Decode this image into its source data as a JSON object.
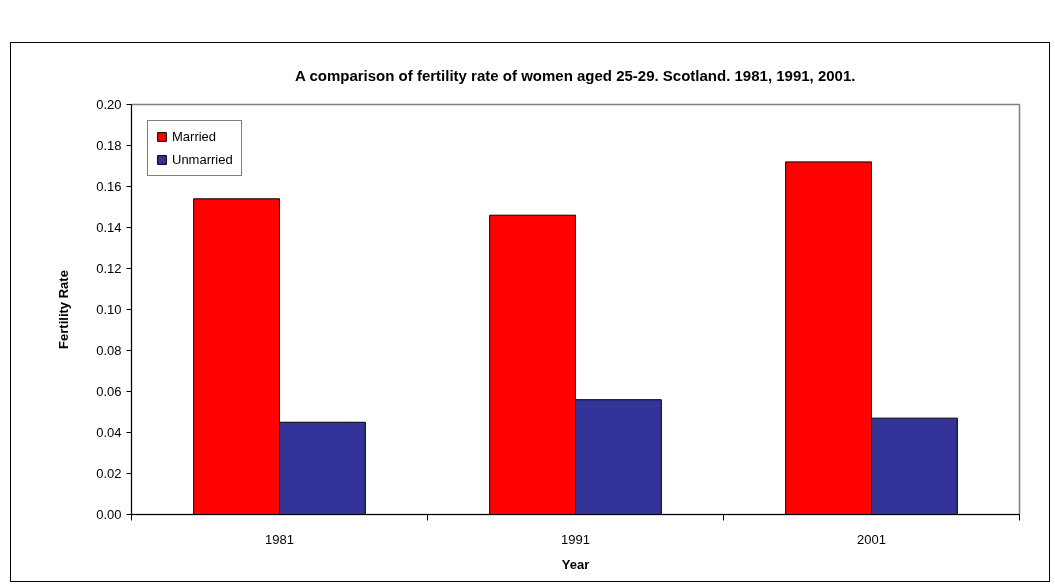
{
  "chart_data": {
    "type": "bar",
    "title": "A comparison of fertility rate of women aged 25-29. Scotland. 1981, 1991, 2001.",
    "xlabel": "Year",
    "ylabel": "Fertility Rate",
    "categories": [
      "1981",
      "1991",
      "2001"
    ],
    "series": [
      {
        "name": "Married",
        "color": "#ff0000",
        "values": [
          0.154,
          0.146,
          0.172
        ]
      },
      {
        "name": "Unmarried",
        "color": "#333399",
        "values": [
          0.045,
          0.056,
          0.047
        ]
      }
    ],
    "ylim": [
      0,
      0.2
    ],
    "yticks": [
      {
        "value": 0,
        "label": "0.00"
      },
      {
        "value": 0.02,
        "label": "0.02"
      },
      {
        "value": 0.04,
        "label": "0.04"
      },
      {
        "value": 0.06,
        "label": "0.06"
      },
      {
        "value": 0.08,
        "label": "0.08"
      },
      {
        "value": 0.1,
        "label": "0.10"
      },
      {
        "value": 0.12,
        "label": "0.12"
      },
      {
        "value": 0.14,
        "label": "0.14"
      },
      {
        "value": 0.16,
        "label": "0.16"
      },
      {
        "value": 0.18,
        "label": "0.18"
      },
      {
        "value": 0.2,
        "label": "0.20"
      }
    ],
    "grid": false,
    "legend": "top left"
  }
}
